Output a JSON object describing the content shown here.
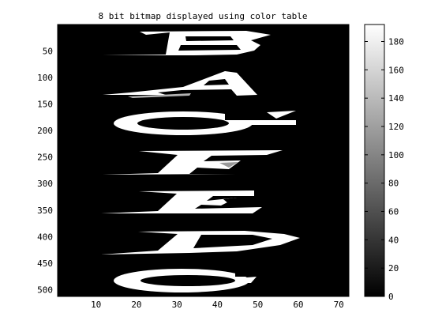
{
  "chart_data": {
    "type": "heatmap",
    "title": "8 bit bitmap displayed using color table",
    "xlabel": "",
    "ylabel": "",
    "xlim": [
      0.5,
      72.5
    ],
    "ylim": [
      0.5,
      512.5
    ],
    "y_direction": "reverse",
    "x_ticks": [
      10,
      20,
      30,
      40,
      50,
      60,
      70
    ],
    "y_ticks": [
      50,
      100,
      150,
      200,
      250,
      300,
      350,
      400,
      450,
      500
    ],
    "colormap": "gray",
    "background_color": "#000000",
    "foreground_color": "#ffffff",
    "colorbar": {
      "location": "right",
      "clim": [
        0,
        192
      ],
      "ticks": [
        0,
        20,
        40,
        60,
        80,
        100,
        120,
        140,
        160,
        180
      ]
    },
    "image_content": {
      "description_letters": [
        "B",
        "A",
        "G",
        "F",
        "E",
        "D",
        "C"
      ],
      "letter_row_spans": [
        [
          1,
          80
        ],
        [
          80,
          150
        ],
        [
          150,
          225
        ],
        [
          225,
          295
        ],
        [
          295,
          370
        ],
        [
          370,
          445
        ],
        [
          445,
          512
        ]
      ]
    }
  }
}
